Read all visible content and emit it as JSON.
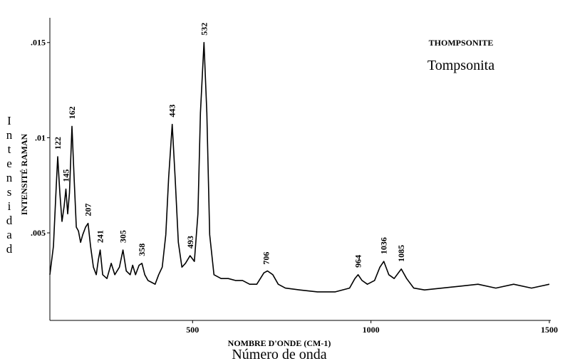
{
  "chart_data": {
    "type": "line",
    "title": "THOMPSONITE",
    "subtitle": "Tompsonita",
    "x_label": "NOMBRE D'ONDE (CM-1)",
    "x_label_translation": "Número de onda",
    "y_label": "INTENSITÉ RAMAN",
    "y_label_translation": "Intensidad",
    "color": "#000000",
    "xlim": [
      100,
      1500
    ],
    "ylim": [
      0.0004,
      0.0163
    ],
    "xticks": [
      500,
      1000,
      1500
    ],
    "yticks": [
      {
        "value": 0.005,
        "label": ".005"
      },
      {
        "value": 0.01,
        "label": ".01"
      },
      {
        "value": 0.015,
        "label": ".015"
      }
    ],
    "x": [
      100,
      110,
      118,
      122,
      128,
      134,
      140,
      145,
      150,
      155,
      162,
      168,
      174,
      180,
      186,
      192,
      200,
      207,
      214,
      222,
      230,
      236,
      241,
      248,
      260,
      272,
      282,
      295,
      305,
      314,
      325,
      332,
      340,
      350,
      358,
      366,
      375,
      385,
      395,
      405,
      415,
      425,
      433,
      443,
      451,
      460,
      470,
      480,
      493,
      505,
      515,
      522,
      532,
      540,
      548,
      560,
      580,
      600,
      620,
      640,
      660,
      680,
      690,
      700,
      710,
      725,
      740,
      760,
      800,
      850,
      900,
      940,
      955,
      964,
      975,
      990,
      1010,
      1025,
      1036,
      1050,
      1065,
      1085,
      1100,
      1120,
      1150,
      1200,
      1250,
      1300,
      1350,
      1400,
      1450,
      1500
    ],
    "values": [
      0.0028,
      0.0043,
      0.0075,
      0.009,
      0.0071,
      0.0056,
      0.0064,
      0.0073,
      0.006,
      0.0071,
      0.0106,
      0.0079,
      0.0053,
      0.0051,
      0.0045,
      0.0049,
      0.0053,
      0.0055,
      0.0043,
      0.0032,
      0.0028,
      0.0036,
      0.0041,
      0.0028,
      0.0026,
      0.0034,
      0.0028,
      0.0032,
      0.0041,
      0.003,
      0.0028,
      0.0033,
      0.0028,
      0.0033,
      0.0034,
      0.0028,
      0.0025,
      0.0024,
      0.0023,
      0.0028,
      0.0032,
      0.0049,
      0.0079,
      0.0107,
      0.0079,
      0.0045,
      0.0032,
      0.0034,
      0.0038,
      0.0035,
      0.006,
      0.0113,
      0.015,
      0.0113,
      0.0049,
      0.0028,
      0.0026,
      0.0026,
      0.0025,
      0.0025,
      0.0023,
      0.0023,
      0.0026,
      0.0029,
      0.003,
      0.0028,
      0.0023,
      0.0021,
      0.002,
      0.0019,
      0.0019,
      0.0021,
      0.0026,
      0.0028,
      0.0025,
      0.0023,
      0.0025,
      0.0032,
      0.0035,
      0.0028,
      0.0026,
      0.0031,
      0.0026,
      0.0021,
      0.002,
      0.0021,
      0.0022,
      0.0023,
      0.0021,
      0.0023,
      0.0021,
      0.0023
    ],
    "peak_labels": [
      122,
      145,
      162,
      207,
      241,
      305,
      358,
      443,
      493,
      532,
      706,
      964,
      1036,
      1085
    ]
  }
}
